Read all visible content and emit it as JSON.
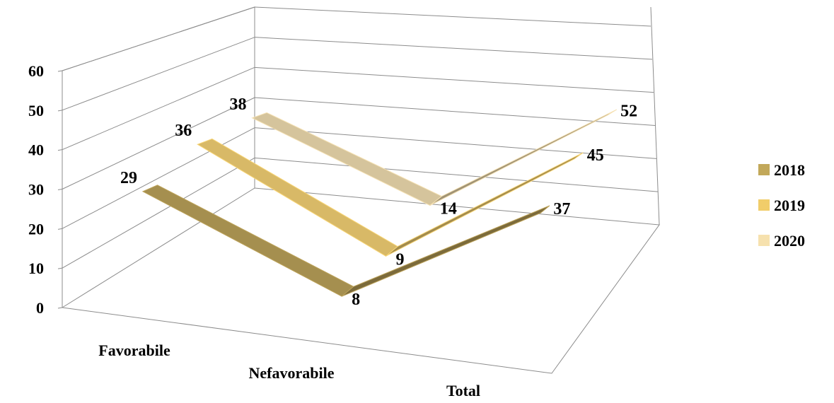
{
  "chart_data": {
    "type": "line",
    "style": "3d-ribbon",
    "title": "",
    "xlabel": "",
    "ylabel": "",
    "categories": [
      "Favorabile",
      "Nefavorabile",
      "Total"
    ],
    "ylim": [
      0,
      60
    ],
    "yticks": [
      "0",
      "10",
      "20",
      "30",
      "40",
      "50",
      "60"
    ],
    "grid": true,
    "legend_position": "right",
    "series": [
      {
        "name": "2018",
        "values": [
          29,
          8,
          37
        ],
        "labels": [
          "29",
          "8",
          "37"
        ],
        "color": "#a58f4f",
        "legend_color": "#c2a85a"
      },
      {
        "name": "2019",
        "values": [
          36,
          9,
          45
        ],
        "labels": [
          "36",
          "9",
          "45"
        ],
        "color": "#d8b967",
        "legend_color": "#f1cd6a"
      },
      {
        "name": "2020",
        "values": [
          38,
          14,
          52
        ],
        "labels": [
          "38",
          "14",
          "52"
        ],
        "color": "#d5c49c",
        "legend_color": "#f6e1ae"
      }
    ]
  }
}
